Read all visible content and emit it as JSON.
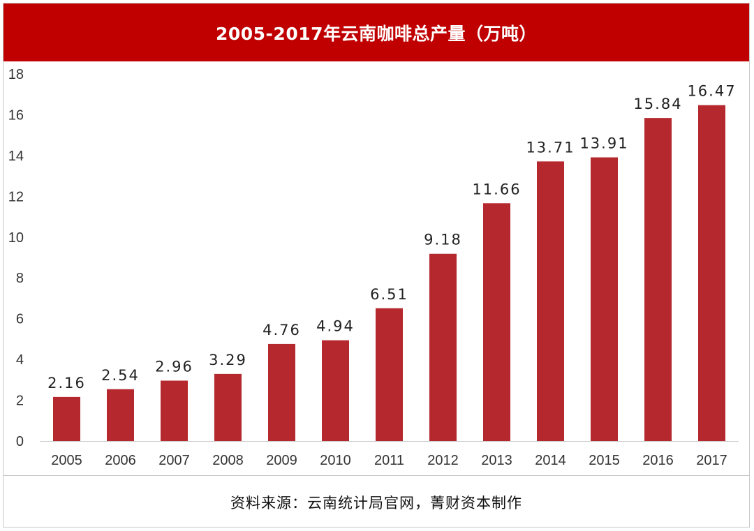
{
  "chart_data": {
    "type": "bar",
    "title": "2005-2017年云南咖啡总产量（万吨）",
    "categories": [
      "2005",
      "2006",
      "2007",
      "2008",
      "2009",
      "2010",
      "2011",
      "2012",
      "2013",
      "2014",
      "2015",
      "2016",
      "2017"
    ],
    "values": [
      2.16,
      2.54,
      2.96,
      3.29,
      4.76,
      4.94,
      6.51,
      9.18,
      11.66,
      13.71,
      13.91,
      15.84,
      16.47
    ],
    "data_labels": [
      "2.16",
      "2.54",
      "2.96",
      "3.29",
      "4.76",
      "4.94",
      "6.51",
      "9.18",
      "11.66",
      "13.71",
      "13.91",
      "15.84",
      "16.47"
    ],
    "yticks": [
      0,
      2,
      4,
      6,
      8,
      10,
      12,
      14,
      16,
      18
    ],
    "ylim": [
      0,
      18
    ],
    "grid": false,
    "legend": "none",
    "bar_color": "#b5292e",
    "title_bg_color": "#c00000"
  },
  "source_note": "资料来源：云南统计局官网，菁财资本制作"
}
